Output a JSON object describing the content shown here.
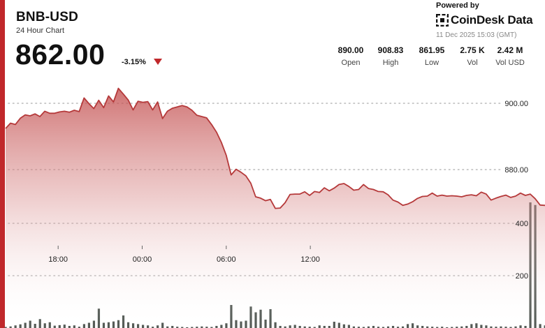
{
  "header": {
    "symbol": "BNB-USD",
    "subtitle": "24 Hour Chart",
    "price": "862.00",
    "change": "-3.15%"
  },
  "branding": {
    "powered_by": "Powered by",
    "name": "CoinDesk Data",
    "timestamp": "11 Dec 2025 15:03 (GMT)"
  },
  "stats": [
    {
      "value": "890.00",
      "label": "Open"
    },
    {
      "value": "908.83",
      "label": "High"
    },
    {
      "value": "861.95",
      "label": "Low"
    },
    {
      "value": "2.75 K",
      "label": "Vol"
    },
    {
      "value": "2.42 M",
      "label": "Vol USD"
    }
  ],
  "colors": {
    "accent": "#c0282b",
    "line": "#b5393a",
    "volume": "#545a55"
  },
  "chart_data": {
    "type": "area",
    "x_ticks": [
      "18:00",
      "00:00",
      "06:00",
      "12:00"
    ],
    "price_ticks": [
      900,
      880
    ],
    "volume_ticks": [
      400,
      200
    ],
    "price_axis": {
      "min": 854,
      "max": 920
    },
    "volume_axis": {
      "min": 0,
      "max": 580
    },
    "series": [
      {
        "values": [
          [
            0,
            892.4
          ],
          [
            1.4,
            894.0
          ],
          [
            2.8,
            893.6
          ],
          [
            4.2,
            895.5
          ],
          [
            5.6,
            896.5
          ],
          [
            7.0,
            896.2
          ],
          [
            8.4,
            896.8
          ],
          [
            9.8,
            896.0
          ],
          [
            11.2,
            897.6
          ],
          [
            12.6,
            897.0
          ],
          [
            14.0,
            897.0
          ],
          [
            15.4,
            897.4
          ],
          [
            16.8,
            897.6
          ],
          [
            18.2,
            897.3
          ],
          [
            19.6,
            897.9
          ],
          [
            21.0,
            897.5
          ],
          [
            22.4,
            901.6
          ],
          [
            23.8,
            899.9
          ],
          [
            25.2,
            898.4
          ],
          [
            26.6,
            900.9
          ],
          [
            28.0,
            898.7
          ],
          [
            29.4,
            902.2
          ],
          [
            30.8,
            900.4
          ],
          [
            32.2,
            904.5
          ],
          [
            33.6,
            902.8
          ],
          [
            35.0,
            901.0
          ],
          [
            36.4,
            898.0
          ],
          [
            37.8,
            900.6
          ],
          [
            39.2,
            900.3
          ],
          [
            40.6,
            900.5
          ],
          [
            42.0,
            898.0
          ],
          [
            43.4,
            900.4
          ],
          [
            44.8,
            895.4
          ],
          [
            46.2,
            897.6
          ],
          [
            47.6,
            898.5
          ],
          [
            49.0,
            898.9
          ],
          [
            50.4,
            899.3
          ],
          [
            51.8,
            898.9
          ],
          [
            53.2,
            897.9
          ],
          [
            54.6,
            896.4
          ],
          [
            56.0,
            896.0
          ],
          [
            57.4,
            895.6
          ],
          [
            58.8,
            893.6
          ],
          [
            60.2,
            891.3
          ],
          [
            61.6,
            888.2
          ],
          [
            63.0,
            884.3
          ],
          [
            64.4,
            878.4
          ],
          [
            65.8,
            880.1
          ],
          [
            67.2,
            879.2
          ],
          [
            68.6,
            878.1
          ],
          [
            70.0,
            875.9
          ],
          [
            71.4,
            871.8
          ],
          [
            72.8,
            871.4
          ],
          [
            74.2,
            870.6
          ],
          [
            75.6,
            871.0
          ],
          [
            77.0,
            868.3
          ],
          [
            78.4,
            868.4
          ],
          [
            79.8,
            870.0
          ],
          [
            81.2,
            872.5
          ],
          [
            82.6,
            872.6
          ],
          [
            84.0,
            872.6
          ],
          [
            85.4,
            873.3
          ],
          [
            86.8,
            872.2
          ],
          [
            88.2,
            873.4
          ],
          [
            89.6,
            873.1
          ],
          [
            91.0,
            874.5
          ],
          [
            92.4,
            873.6
          ],
          [
            93.8,
            874.4
          ],
          [
            95.2,
            875.5
          ],
          [
            96.6,
            875.8
          ],
          [
            98.0,
            874.9
          ],
          [
            99.4,
            873.8
          ],
          [
            100.8,
            874.0
          ],
          [
            102.2,
            875.5
          ],
          [
            103.6,
            874.3
          ],
          [
            105.0,
            874.0
          ],
          [
            106.4,
            873.4
          ],
          [
            107.8,
            873.3
          ],
          [
            109.2,
            872.4
          ],
          [
            110.6,
            870.8
          ],
          [
            112.0,
            870.2
          ],
          [
            113.4,
            869.2
          ],
          [
            114.8,
            869.6
          ],
          [
            116.2,
            870.3
          ],
          [
            117.6,
            871.3
          ],
          [
            119.0,
            871.9
          ],
          [
            120.4,
            872.0
          ],
          [
            121.8,
            872.9
          ],
          [
            123.2,
            872.0
          ],
          [
            124.6,
            872.3
          ],
          [
            126.0,
            872.0
          ],
          [
            127.4,
            872.1
          ],
          [
            128.8,
            872.0
          ],
          [
            130.2,
            871.8
          ],
          [
            131.6,
            872.2
          ],
          [
            133.0,
            872.4
          ],
          [
            134.4,
            872.1
          ],
          [
            135.8,
            873.2
          ],
          [
            137.2,
            872.6
          ],
          [
            138.6,
            870.8
          ],
          [
            140.0,
            871.4
          ],
          [
            141.4,
            871.9
          ],
          [
            142.8,
            872.3
          ],
          [
            144.2,
            871.6
          ],
          [
            145.6,
            872.0
          ],
          [
            147.0,
            872.9
          ],
          [
            148.4,
            872.2
          ],
          [
            149.8,
            872.6
          ],
          [
            151.2,
            871.2
          ],
          [
            152.6,
            869.3
          ],
          [
            154.0,
            869.2
          ]
        ]
      }
    ],
    "volumes": [
      [
        0,
        4
      ],
      [
        1.4,
        6
      ],
      [
        2.8,
        10
      ],
      [
        4.2,
        14
      ],
      [
        5.6,
        20
      ],
      [
        7.0,
        28
      ],
      [
        8.4,
        16
      ],
      [
        9.8,
        34
      ],
      [
        11.2,
        18
      ],
      [
        12.6,
        22
      ],
      [
        14.0,
        9
      ],
      [
        15.4,
        11
      ],
      [
        16.8,
        13
      ],
      [
        18.2,
        8
      ],
      [
        19.6,
        10
      ],
      [
        21.0,
        5
      ],
      [
        22.4,
        15
      ],
      [
        23.8,
        20
      ],
      [
        25.2,
        28
      ],
      [
        26.6,
        74
      ],
      [
        28.0,
        20
      ],
      [
        29.4,
        22
      ],
      [
        30.8,
        25
      ],
      [
        32.2,
        30
      ],
      [
        33.6,
        48
      ],
      [
        35.0,
        22
      ],
      [
        36.4,
        18
      ],
      [
        37.8,
        15
      ],
      [
        39.2,
        12
      ],
      [
        40.6,
        10
      ],
      [
        42.0,
        5
      ],
      [
        43.4,
        10
      ],
      [
        44.8,
        20
      ],
      [
        46.2,
        6
      ],
      [
        47.6,
        8
      ],
      [
        49.0,
        5
      ],
      [
        50.4,
        4
      ],
      [
        51.8,
        3
      ],
      [
        53.2,
        4
      ],
      [
        54.6,
        5
      ],
      [
        56.0,
        6
      ],
      [
        57.4,
        5
      ],
      [
        58.8,
        4
      ],
      [
        60.2,
        8
      ],
      [
        61.6,
        12
      ],
      [
        63.0,
        18
      ],
      [
        64.4,
        88
      ],
      [
        65.8,
        30
      ],
      [
        67.2,
        25
      ],
      [
        68.6,
        28
      ],
      [
        70.0,
        82
      ],
      [
        71.4,
        60
      ],
      [
        72.8,
        70
      ],
      [
        74.2,
        32
      ],
      [
        75.6,
        72
      ],
      [
        77.0,
        22
      ],
      [
        78.4,
        8
      ],
      [
        79.8,
        6
      ],
      [
        81.2,
        10
      ],
      [
        82.6,
        12
      ],
      [
        84.0,
        8
      ],
      [
        85.4,
        6
      ],
      [
        86.8,
        5
      ],
      [
        88.2,
        4
      ],
      [
        89.6,
        10
      ],
      [
        91.0,
        8
      ],
      [
        92.4,
        8
      ],
      [
        93.8,
        24
      ],
      [
        95.2,
        20
      ],
      [
        96.6,
        14
      ],
      [
        98.0,
        12
      ],
      [
        99.4,
        6
      ],
      [
        100.8,
        5
      ],
      [
        102.2,
        4
      ],
      [
        103.6,
        6
      ],
      [
        105.0,
        8
      ],
      [
        106.4,
        5
      ],
      [
        107.8,
        4
      ],
      [
        109.2,
        6
      ],
      [
        110.6,
        8
      ],
      [
        112.0,
        5
      ],
      [
        113.4,
        6
      ],
      [
        114.8,
        15
      ],
      [
        116.2,
        18
      ],
      [
        117.6,
        10
      ],
      [
        119.0,
        8
      ],
      [
        120.4,
        6
      ],
      [
        121.8,
        5
      ],
      [
        123.2,
        4
      ],
      [
        124.6,
        5
      ],
      [
        126.0,
        3
      ],
      [
        127.4,
        4
      ],
      [
        128.8,
        5
      ],
      [
        130.2,
        6
      ],
      [
        131.6,
        8
      ],
      [
        133.0,
        15
      ],
      [
        134.4,
        18
      ],
      [
        135.8,
        12
      ],
      [
        137.2,
        10
      ],
      [
        138.6,
        6
      ],
      [
        140.0,
        5
      ],
      [
        141.4,
        6
      ],
      [
        142.8,
        5
      ],
      [
        144.2,
        4
      ],
      [
        145.6,
        6
      ],
      [
        147.0,
        10
      ],
      [
        148.4,
        8
      ],
      [
        149.8,
        480
      ],
      [
        151.2,
        470
      ],
      [
        152.6,
        15
      ],
      [
        154.0,
        10
      ]
    ],
    "gridlines": true,
    "legend": "none"
  }
}
